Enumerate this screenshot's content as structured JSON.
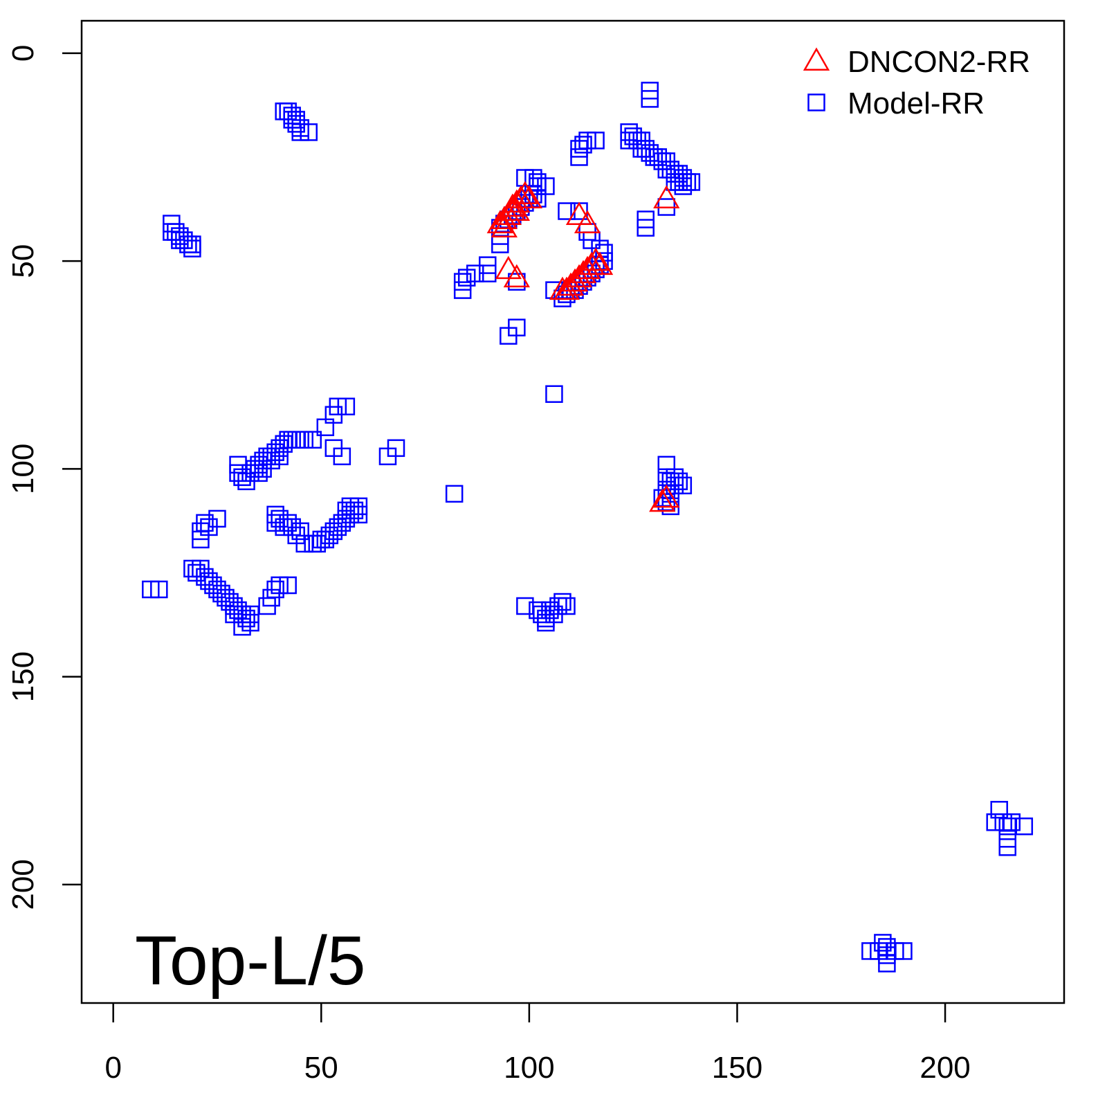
{
  "chart_data": {
    "type": "scatter",
    "annotation": "Top-L/5",
    "xlim": [
      -7.6,
      228.6
    ],
    "ylim": [
      228.5,
      -7.8
    ],
    "xticks": [
      0,
      50,
      100,
      150,
      200
    ],
    "yticks": [
      0,
      50,
      100,
      150,
      200
    ],
    "y_reversed": true,
    "legend": "top-right",
    "series": [
      {
        "name": "DNCON2-RR",
        "color": "#ff0000",
        "marker": "triangle",
        "x": [
          99,
          98,
          97,
          96,
          96,
          95,
          94,
          93,
          94,
          97,
          100,
          95,
          97,
          112,
          114,
          115,
          114,
          113,
          112,
          111,
          110,
          109,
          108,
          116,
          117,
          133,
          133,
          132
        ],
        "y": [
          34,
          35,
          36,
          37,
          38,
          39,
          40,
          41,
          42,
          38,
          35,
          52,
          54,
          39,
          41,
          51,
          52,
          53,
          54,
          55,
          56,
          57,
          57,
          50,
          51,
          35,
          107,
          108
        ]
      },
      {
        "name": "Model-RR",
        "color": "#0000ff",
        "marker": "square",
        "x": [
          41,
          42,
          43,
          43,
          44,
          44,
          45,
          45,
          47,
          14,
          14,
          15,
          16,
          16,
          17,
          18,
          19,
          19,
          129,
          129,
          124,
          124,
          125,
          126,
          127,
          127,
          128,
          129,
          130,
          131,
          132,
          133,
          133,
          134,
          135,
          136,
          136,
          137,
          138,
          139,
          135,
          137,
          133,
          128,
          128,
          112,
          112,
          113,
          114,
          116,
          99,
          101,
          102,
          102,
          104,
          101,
          102,
          100,
          99,
          98,
          97,
          96,
          95,
          94,
          93,
          93,
          93,
          97,
          109,
          112,
          114,
          115,
          117,
          118,
          118,
          117,
          116,
          115,
          114,
          113,
          112,
          111,
          110,
          109,
          108,
          106,
          84,
          84,
          85,
          87,
          90,
          90,
          95,
          97,
          106,
          82,
          51,
          53,
          54,
          56,
          53,
          55,
          66,
          68,
          30,
          30,
          31,
          32,
          33,
          34,
          35,
          36,
          37,
          38,
          39,
          40,
          41,
          42,
          43,
          44,
          45,
          46,
          48,
          35,
          36,
          38,
          40,
          21,
          21,
          22,
          23,
          25,
          39,
          39,
          40,
          41,
          42,
          43,
          44,
          45,
          46,
          48,
          49,
          50,
          51,
          52,
          53,
          54,
          55,
          56,
          57,
          57,
          58,
          59,
          59,
          56,
          9,
          11,
          19,
          20,
          21,
          22,
          23,
          24,
          25,
          26,
          27,
          28,
          29,
          30,
          31,
          32,
          33,
          31,
          29,
          33,
          37,
          38,
          39,
          40,
          42,
          99,
          102,
          103,
          104,
          104,
          106,
          107,
          108,
          109,
          105,
          133,
          133,
          134,
          135,
          135,
          136,
          137,
          133,
          134,
          133,
          134,
          132,
          185,
          186,
          184,
          186,
          188,
          190,
          186,
          182,
          213,
          212,
          214,
          215,
          216,
          219,
          215,
          215
        ],
        "y": [
          14,
          14,
          15,
          16,
          16,
          17,
          18,
          19,
          19,
          41,
          43,
          43,
          44,
          45,
          45,
          46,
          46,
          47,
          9,
          11,
          19,
          21,
          20,
          21,
          21,
          23,
          23,
          24,
          25,
          25,
          26,
          26,
          28,
          28,
          29,
          29,
          31,
          30,
          31,
          31,
          31,
          32,
          37,
          40,
          42,
          23,
          25,
          22,
          21,
          21,
          30,
          30,
          31,
          32,
          32,
          34,
          35,
          35,
          36,
          37,
          38,
          39,
          40,
          41,
          42,
          44,
          46,
          55,
          38,
          38,
          43,
          45,
          47,
          48,
          50,
          51,
          52,
          53,
          54,
          55,
          56,
          57,
          57,
          58,
          59,
          57,
          55,
          57,
          54,
          53,
          51,
          53,
          68,
          66,
          82,
          106,
          90,
          87,
          85,
          85,
          95,
          97,
          97,
          95,
          99,
          101,
          102,
          103,
          101,
          100,
          99,
          98,
          97,
          97,
          96,
          95,
          94,
          93,
          93,
          93,
          93,
          93,
          93,
          101,
          100,
          98,
          97,
          115,
          117,
          113,
          114,
          112,
          111,
          113,
          112,
          114,
          113,
          114,
          116,
          115,
          118,
          118,
          118,
          117,
          117,
          116,
          115,
          114,
          113,
          112,
          111,
          109,
          110,
          109,
          111,
          110,
          129,
          129,
          124,
          125,
          124,
          126,
          127,
          128,
          129,
          130,
          131,
          132,
          133,
          134,
          135,
          136,
          137,
          138,
          135,
          135,
          133,
          131,
          129,
          128,
          128,
          133,
          134,
          135,
          136,
          137,
          135,
          133,
          132,
          133,
          134,
          99,
          102,
          103,
          102,
          104,
          103,
          104,
          105,
          106,
          108,
          109,
          107,
          214,
          215,
          216,
          217,
          216,
          216,
          219,
          216,
          182,
          185,
          185,
          186,
          185,
          186,
          189,
          191
        ]
      }
    ]
  }
}
